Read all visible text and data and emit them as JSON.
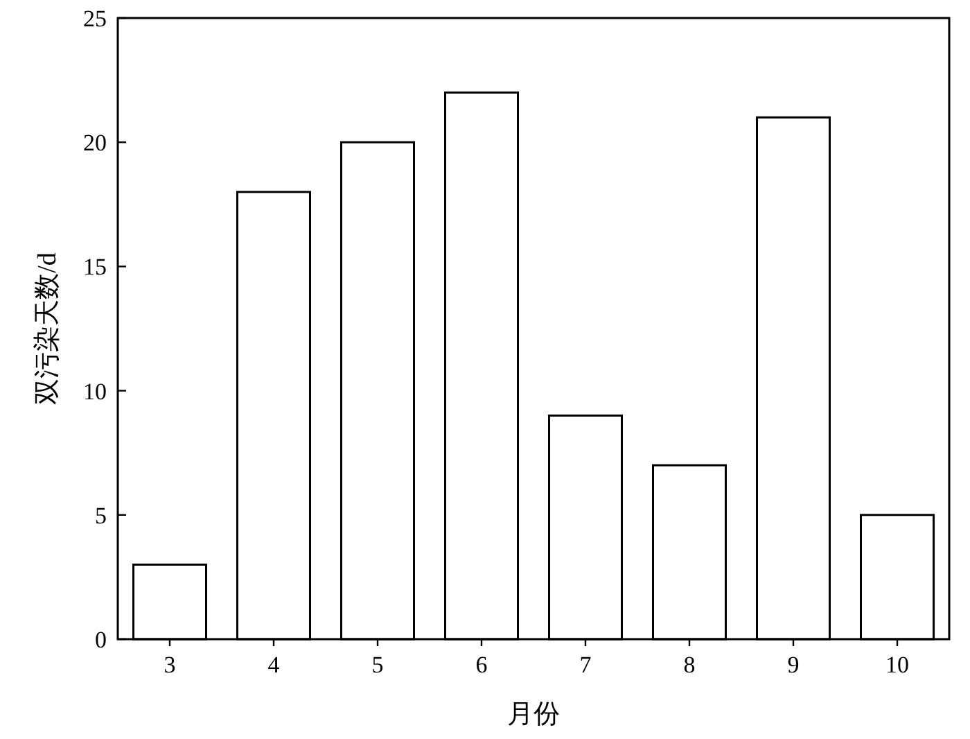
{
  "chart_data": {
    "type": "bar",
    "xlabel": "月份",
    "ylabel": "双污染天数/d",
    "categories": [
      "3",
      "4",
      "5",
      "6",
      "7",
      "8",
      "9",
      "10"
    ],
    "values": [
      3,
      18,
      20,
      22,
      9,
      7,
      21,
      5
    ],
    "color": "#ffffff",
    "ylim": [
      0,
      25
    ],
    "yticks": [
      0,
      5,
      10,
      15,
      20,
      25
    ]
  }
}
